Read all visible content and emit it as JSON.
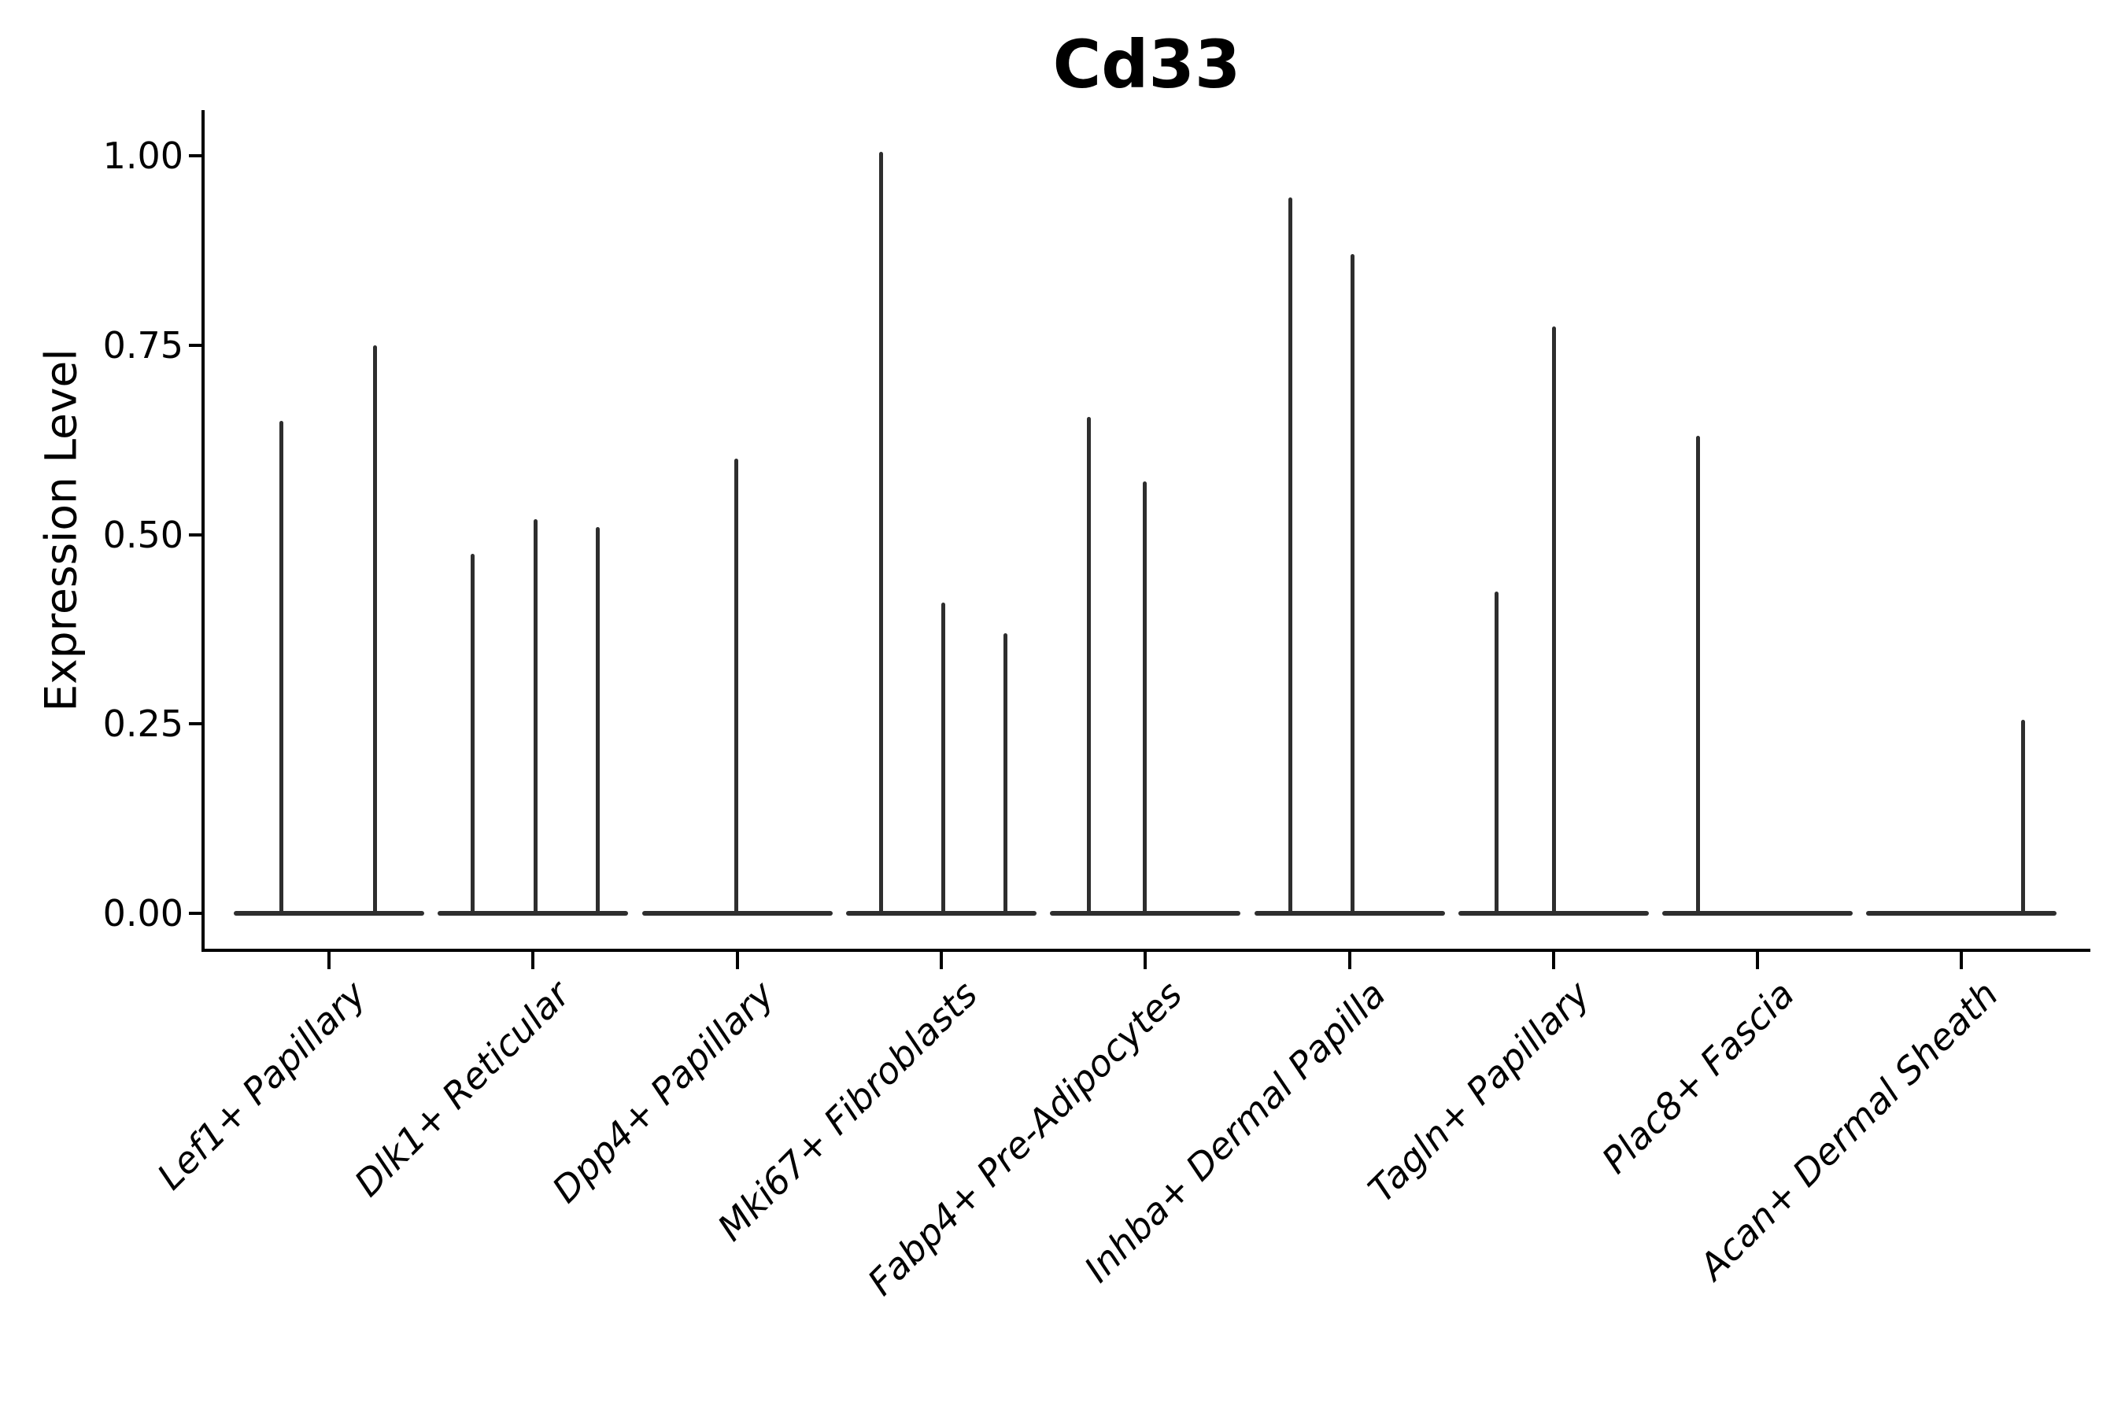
{
  "chart_data": {
    "type": "violin",
    "title": "Cd33",
    "ylabel": "Expression Level",
    "xlabel": "",
    "grid": false,
    "legend": "none",
    "background": "#ffffff",
    "ylim": [
      0,
      1.06
    ],
    "yticks": [
      "0.00",
      "0.25",
      "0.50",
      "0.75",
      "1.00"
    ],
    "ytick_values": [
      0.0,
      0.25,
      0.5,
      0.75,
      1.0
    ],
    "categories": [
      "Lef1+ Papillary",
      "Dlk1+ Reticular",
      "Dpp4+ Papillary",
      "Mki67+ Fibroblasts",
      "Fabp4+ Pre-Adipocytes",
      "Inhba+ Dermal Papilla",
      "Tagln+ Papillary",
      "Plac8+ Fascia",
      "Acan+ Dermal Sheath"
    ],
    "series": [
      {
        "name": "Lef1+ Papillary",
        "spikes": [
          {
            "offset": -61,
            "value": 0.65
          },
          {
            "offset": 58,
            "value": 0.75
          }
        ]
      },
      {
        "name": "Dlk1+ Reticular",
        "spikes": [
          {
            "offset": -77,
            "value": 0.475
          },
          {
            "offset": 3,
            "value": 0.52
          },
          {
            "offset": 82,
            "value": 0.51
          }
        ]
      },
      {
        "name": "Dpp4+ Papillary",
        "spikes": [
          {
            "offset": -1,
            "value": 0.6
          }
        ]
      },
      {
        "name": "Mki67+ Fibroblasts",
        "spikes": [
          {
            "offset": -76,
            "value": 1.005
          },
          {
            "offset": 3,
            "value": 0.41
          },
          {
            "offset": 82,
            "value": 0.37
          }
        ]
      },
      {
        "name": "Fabp4+ Pre-Adipocytes",
        "spikes": [
          {
            "offset": -72,
            "value": 0.655
          },
          {
            "offset": -1,
            "value": 0.57
          }
        ]
      },
      {
        "name": "Inhba+ Dermal Papilla",
        "spikes": [
          {
            "offset": -75,
            "value": 0.945
          },
          {
            "offset": 4,
            "value": 0.87
          }
        ]
      },
      {
        "name": "Tagln+ Papillary",
        "spikes": [
          {
            "offset": -72,
            "value": 0.425
          },
          {
            "offset": 1,
            "value": 0.775
          }
        ]
      },
      {
        "name": "Plac8+ Fascia",
        "spikes": [
          {
            "offset": -76,
            "value": 0.63
          }
        ]
      },
      {
        "name": "Acan+ Dermal Sheath",
        "spikes": [
          {
            "offset": 78,
            "value": 0.255
          }
        ]
      }
    ],
    "colors": {
      "violin": "#2e2e2e",
      "axis": "#000000",
      "text": "#000000",
      "background": "#ffffff"
    }
  }
}
